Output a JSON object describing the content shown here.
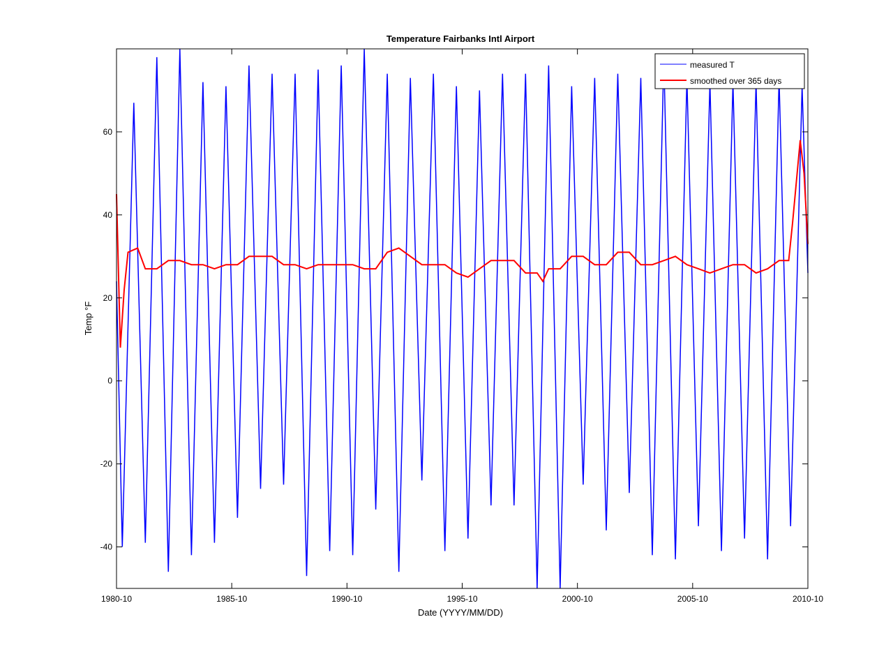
{
  "chart_data": {
    "type": "line",
    "title": "Temperature Fairbanks Intl Airport",
    "xlabel": "Date (YYYY/MM/DD)",
    "ylabel": "Temp °F",
    "xlim": [
      "1980-10",
      "2010-10"
    ],
    "ylim": [
      -50,
      80
    ],
    "xticks": [
      "1980-10",
      "1985-10",
      "1990-10",
      "1995-10",
      "2000-10",
      "2005-10",
      "2010-10"
    ],
    "yticks": [
      -40,
      -20,
      0,
      20,
      40,
      60
    ],
    "grid": false,
    "legend": "top-right",
    "series": [
      {
        "name": "measured T",
        "color": "#0000ff",
        "note_sampling": "seasonal extremes",
        "points": [
          [
            "1980-10",
            24
          ],
          [
            "1981-01",
            -40
          ],
          [
            "1981-07",
            67
          ],
          [
            "1982-01",
            -39
          ],
          [
            "1982-07",
            78
          ],
          [
            "1983-01",
            -46
          ],
          [
            "1983-07",
            80
          ],
          [
            "1984-01",
            -42
          ],
          [
            "1984-07",
            72
          ],
          [
            "1985-01",
            -39
          ],
          [
            "1985-07",
            71
          ],
          [
            "1986-01",
            -33
          ],
          [
            "1986-07",
            76
          ],
          [
            "1987-01",
            -26
          ],
          [
            "1987-07",
            74
          ],
          [
            "1988-01",
            -25
          ],
          [
            "1988-07",
            74
          ],
          [
            "1989-01",
            -47
          ],
          [
            "1989-07",
            75
          ],
          [
            "1990-01",
            -41
          ],
          [
            "1990-07",
            76
          ],
          [
            "1991-01",
            -42
          ],
          [
            "1991-07",
            80
          ],
          [
            "1992-01",
            -31
          ],
          [
            "1992-07",
            74
          ],
          [
            "1993-01",
            -46
          ],
          [
            "1993-07",
            73
          ],
          [
            "1994-01",
            -24
          ],
          [
            "1994-07",
            74
          ],
          [
            "1995-01",
            -41
          ],
          [
            "1995-07",
            71
          ],
          [
            "1996-01",
            -38
          ],
          [
            "1996-07",
            70
          ],
          [
            "1997-01",
            -30
          ],
          [
            "1997-07",
            74
          ],
          [
            "1998-01",
            -30
          ],
          [
            "1998-07",
            74
          ],
          [
            "1999-01",
            -50
          ],
          [
            "1999-07",
            76
          ],
          [
            "2000-01",
            -50
          ],
          [
            "2000-07",
            71
          ],
          [
            "2001-01",
            -25
          ],
          [
            "2001-07",
            73
          ],
          [
            "2002-01",
            -36
          ],
          [
            "2002-07",
            74
          ],
          [
            "2003-01",
            -27
          ],
          [
            "2003-07",
            73
          ],
          [
            "2004-01",
            -42
          ],
          [
            "2004-07",
            78
          ],
          [
            "2005-01",
            -43
          ],
          [
            "2005-07",
            73
          ],
          [
            "2006-01",
            -35
          ],
          [
            "2006-07",
            72
          ],
          [
            "2007-01",
            -41
          ],
          [
            "2007-07",
            72
          ],
          [
            "2008-01",
            -38
          ],
          [
            "2008-07",
            72
          ],
          [
            "2009-01",
            -43
          ],
          [
            "2009-07",
            73
          ],
          [
            "2010-01",
            -35
          ],
          [
            "2010-07",
            71
          ],
          [
            "2010-10",
            26
          ]
        ]
      },
      {
        "name": "smoothed over 365 days",
        "color": "#ff0000",
        "points": [
          [
            "1980-10",
            45
          ],
          [
            "1980-12",
            8
          ],
          [
            "1981-02",
            22
          ],
          [
            "1981-04",
            31
          ],
          [
            "1981-09",
            32
          ],
          [
            "1982-01",
            27
          ],
          [
            "1982-07",
            27
          ],
          [
            "1983-01",
            29
          ],
          [
            "1983-07",
            29
          ],
          [
            "1984-01",
            28
          ],
          [
            "1984-07",
            28
          ],
          [
            "1985-01",
            27
          ],
          [
            "1985-07",
            28
          ],
          [
            "1986-01",
            28
          ],
          [
            "1986-07",
            30
          ],
          [
            "1987-01",
            30
          ],
          [
            "1987-07",
            30
          ],
          [
            "1988-01",
            28
          ],
          [
            "1988-07",
            28
          ],
          [
            "1989-01",
            27
          ],
          [
            "1989-07",
            28
          ],
          [
            "1990-01",
            28
          ],
          [
            "1990-07",
            28
          ],
          [
            "1991-01",
            28
          ],
          [
            "1991-07",
            27
          ],
          [
            "1992-01",
            27
          ],
          [
            "1992-07",
            31
          ],
          [
            "1993-01",
            32
          ],
          [
            "1993-07",
            30
          ],
          [
            "1994-01",
            28
          ],
          [
            "1994-07",
            28
          ],
          [
            "1995-01",
            28
          ],
          [
            "1995-07",
            26
          ],
          [
            "1996-01",
            25
          ],
          [
            "1996-07",
            27
          ],
          [
            "1997-01",
            29
          ],
          [
            "1997-07",
            29
          ],
          [
            "1998-01",
            29
          ],
          [
            "1998-07",
            26
          ],
          [
            "1999-01",
            26
          ],
          [
            "1999-04",
            24
          ],
          [
            "1999-07",
            27
          ],
          [
            "2000-01",
            27
          ],
          [
            "2000-07",
            30
          ],
          [
            "2001-01",
            30
          ],
          [
            "2001-07",
            28
          ],
          [
            "2002-01",
            28
          ],
          [
            "2002-07",
            31
          ],
          [
            "2003-01",
            31
          ],
          [
            "2003-07",
            28
          ],
          [
            "2004-01",
            28
          ],
          [
            "2004-07",
            29
          ],
          [
            "2005-01",
            30
          ],
          [
            "2005-07",
            28
          ],
          [
            "2006-01",
            27
          ],
          [
            "2006-07",
            26
          ],
          [
            "2007-01",
            27
          ],
          [
            "2007-07",
            28
          ],
          [
            "2008-01",
            28
          ],
          [
            "2008-07",
            26
          ],
          [
            "2009-01",
            27
          ],
          [
            "2009-07",
            29
          ],
          [
            "2009-12",
            29
          ],
          [
            "2010-02",
            38
          ],
          [
            "2010-06",
            58
          ],
          [
            "2010-08",
            50
          ],
          [
            "2010-10",
            33
          ]
        ]
      }
    ]
  }
}
